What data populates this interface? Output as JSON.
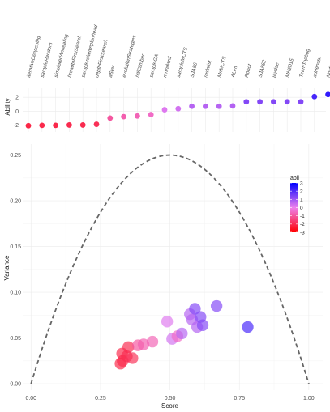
{
  "chart_data": [
    {
      "type": "scatter",
      "title": "",
      "xlabel": "",
      "ylabel": "Ability",
      "ylim": [
        -3,
        3.3
      ],
      "yticks": [
        -2,
        0,
        2
      ],
      "grid": true,
      "categories": [
        "iterativeDeepening",
        "sampleRandom",
        "simulatedAnnealing",
        "breadthFirstSearch",
        "samplerelativeplanhead",
        "depthFirstSearch",
        "aStar",
        "evolutionStrategies",
        "hillClimber",
        "sampleGA",
        "mrtndwrd",
        "sampleMCTS",
        "SJA86",
        "roskvist",
        "MnMCTS",
        "ALim",
        "Rooot",
        "SJA862",
        "jaydee",
        "MH2015",
        "TeamTopbug",
        "adrienctx",
        "Novtea"
      ],
      "values": [
        -2.1,
        -2.05,
        -2.05,
        -2.0,
        -2.0,
        -1.9,
        -1.0,
        -0.8,
        -0.7,
        -0.5,
        0.2,
        0.35,
        0.7,
        0.7,
        0.7,
        0.75,
        1.35,
        1.35,
        1.35,
        1.35,
        1.35,
        2.1,
        2.4
      ]
    },
    {
      "type": "scatter",
      "title": "",
      "xlabel": "Score",
      "ylabel": "Variance",
      "xlim": [
        -0.03,
        1.05
      ],
      "ylim": [
        -0.007,
        0.262
      ],
      "xticks": [
        0.0,
        0.25,
        0.5,
        0.75,
        1.0
      ],
      "yticks": [
        0.0,
        0.05,
        0.1,
        0.15,
        0.2,
        0.25
      ],
      "grid": true,
      "reference_curve": "p(1-p)",
      "legend": {
        "title": "abil",
        "placement": "right",
        "ticks": [
          3,
          2,
          1,
          0,
          -1,
          -2,
          -3
        ]
      },
      "points": [
        {
          "x": 0.322,
          "y": 0.022,
          "abil": -2.1
        },
        {
          "x": 0.33,
          "y": 0.025,
          "abil": -2.05
        },
        {
          "x": 0.328,
          "y": 0.033,
          "abil": -2.05
        },
        {
          "x": 0.345,
          "y": 0.03,
          "abil": -2.0
        },
        {
          "x": 0.35,
          "y": 0.04,
          "abil": -2.0
        },
        {
          "x": 0.365,
          "y": 0.028,
          "abil": -1.9
        },
        {
          "x": 0.385,
          "y": 0.042,
          "abil": -1.0
        },
        {
          "x": 0.405,
          "y": 0.043,
          "abil": -0.8
        },
        {
          "x": 0.437,
          "y": 0.046,
          "abil": -0.7
        },
        {
          "x": 0.49,
          "y": 0.068,
          "abil": 0.2
        },
        {
          "x": 0.508,
          "y": 0.049,
          "abil": 0.35
        },
        {
          "x": 0.527,
          "y": 0.052,
          "abil": -0.5
        },
        {
          "x": 0.543,
          "y": 0.055,
          "abil": 0.7
        },
        {
          "x": 0.572,
          "y": 0.076,
          "abil": 0.7
        },
        {
          "x": 0.58,
          "y": 0.07,
          "abil": 0.7
        },
        {
          "x": 0.59,
          "y": 0.082,
          "abil": 1.35
        },
        {
          "x": 0.598,
          "y": 0.062,
          "abil": 0.75
        },
        {
          "x": 0.61,
          "y": 0.073,
          "abil": 1.35
        },
        {
          "x": 0.618,
          "y": 0.064,
          "abil": 1.35
        },
        {
          "x": 0.668,
          "y": 0.085,
          "abil": 1.35
        },
        {
          "x": 0.78,
          "y": 0.062,
          "abil": 2.1
        }
      ]
    }
  ]
}
